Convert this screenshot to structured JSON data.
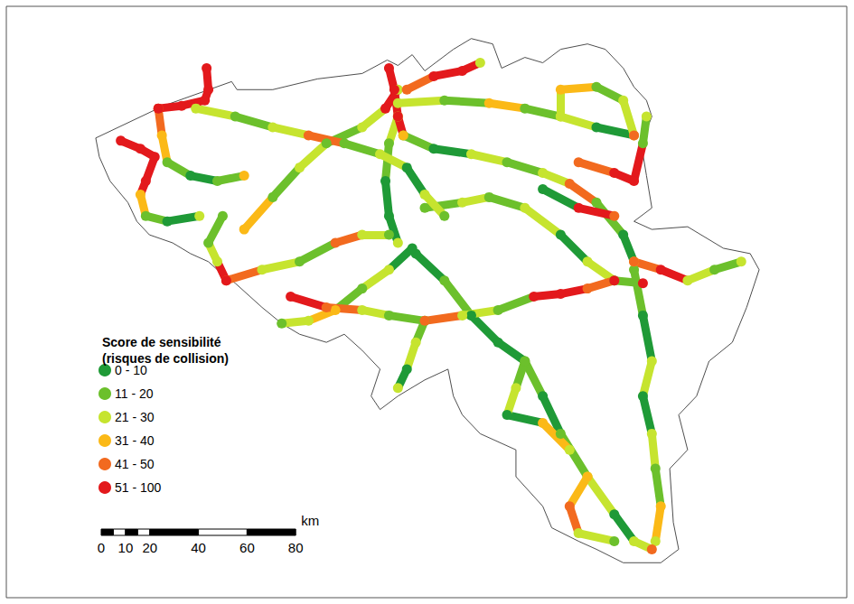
{
  "chart_data": {
    "type": "map",
    "legend_title": "Score de sensibilité\n(risques de collision)",
    "legend": "left",
    "tick_labels": false,
    "xlim": [
      2.04,
      6.74
    ],
    "ylim": [
      49.41,
      51.61
    ],
    "classes": [
      {
        "label": "0 - 10",
        "min": 0,
        "max": 10,
        "color": "#1f9a37"
      },
      {
        "label": "11 - 20",
        "min": 11,
        "max": 20,
        "color": "#6cc02c"
      },
      {
        "label": "21 - 30",
        "min": 21,
        "max": 30,
        "color": "#c6e42f"
      },
      {
        "label": "31 - 40",
        "min": 31,
        "max": 40,
        "color": "#fbb917"
      },
      {
        "label": "41 - 50",
        "min": 41,
        "max": 50,
        "color": "#f26a1f"
      },
      {
        "label": "51 - 100",
        "min": 51,
        "max": 100,
        "color": "#e3191c"
      }
    ],
    "scale_bar": {
      "unit": "km",
      "ticks": [
        0,
        10,
        20,
        40,
        60,
        80
      ],
      "segments": [
        0,
        5,
        10,
        15,
        20,
        40,
        60,
        80
      ]
    },
    "boundary": [
      [
        2.54,
        51.12
      ],
      [
        2.92,
        51.24
      ],
      [
        3.3,
        51.33
      ],
      [
        3.33,
        51.3
      ],
      [
        3.53,
        51.3
      ],
      [
        3.78,
        51.34
      ],
      [
        4.03,
        51.36
      ],
      [
        4.17,
        51.41
      ],
      [
        4.23,
        51.39
      ],
      [
        4.31,
        51.43
      ],
      [
        4.38,
        51.37
      ],
      [
        4.54,
        51.45
      ],
      [
        4.64,
        51.49
      ],
      [
        4.76,
        51.47
      ],
      [
        4.81,
        51.38
      ],
      [
        4.94,
        51.42
      ],
      [
        5.04,
        51.4
      ],
      [
        5.14,
        51.45
      ],
      [
        5.29,
        51.47
      ],
      [
        5.39,
        51.45
      ],
      [
        5.49,
        51.38
      ],
      [
        5.55,
        51.31
      ],
      [
        5.62,
        51.26
      ],
      [
        5.65,
        51.2
      ],
      [
        5.59,
        51.1
      ],
      [
        5.62,
        50.98
      ],
      [
        5.65,
        50.86
      ],
      [
        5.55,
        50.81
      ],
      [
        5.65,
        50.78
      ],
      [
        5.85,
        50.79
      ],
      [
        6.05,
        50.71
      ],
      [
        6.2,
        50.69
      ],
      [
        6.25,
        50.63
      ],
      [
        6.18,
        50.49
      ],
      [
        6.1,
        50.36
      ],
      [
        5.97,
        50.29
      ],
      [
        5.9,
        50.16
      ],
      [
        5.8,
        50.09
      ],
      [
        5.85,
        49.96
      ],
      [
        5.75,
        49.89
      ],
      [
        5.77,
        49.69
      ],
      [
        5.8,
        49.59
      ],
      [
        5.7,
        49.54
      ],
      [
        5.49,
        49.54
      ],
      [
        5.34,
        49.59
      ],
      [
        5.24,
        49.62
      ],
      [
        5.09,
        49.67
      ],
      [
        5.04,
        49.75
      ],
      [
        4.89,
        49.86
      ],
      [
        4.89,
        49.96
      ],
      [
        4.69,
        50.02
      ],
      [
        4.59,
        50.09
      ],
      [
        4.54,
        50.16
      ],
      [
        4.51,
        50.26
      ],
      [
        4.38,
        50.22
      ],
      [
        4.23,
        50.16
      ],
      [
        4.13,
        50.11
      ],
      [
        4.08,
        50.16
      ],
      [
        4.13,
        50.26
      ],
      [
        4.03,
        50.33
      ],
      [
        3.93,
        50.39
      ],
      [
        3.83,
        50.36
      ],
      [
        3.68,
        50.39
      ],
      [
        3.58,
        50.43
      ],
      [
        3.47,
        50.49
      ],
      [
        3.32,
        50.58
      ],
      [
        3.22,
        50.63
      ],
      [
        3.17,
        50.66
      ],
      [
        3.07,
        50.69
      ],
      [
        2.97,
        50.73
      ],
      [
        2.84,
        50.76
      ],
      [
        2.77,
        50.81
      ],
      [
        2.72,
        50.88
      ],
      [
        2.62,
        50.96
      ],
      [
        2.56,
        51.05
      ]
    ],
    "roads": [
      {
        "points": [
          [
            2.68,
            51.11,
            70
          ],
          [
            2.79,
            51.08,
            70
          ],
          [
            2.87,
            51.05,
            65
          ],
          [
            2.82,
            50.96,
            70
          ],
          [
            2.79,
            50.91,
            35
          ],
          [
            2.82,
            50.83,
            15
          ],
          [
            2.94,
            50.81,
            5
          ],
          [
            3.12,
            50.83,
            25
          ]
        ]
      },
      {
        "points": [
          [
            2.89,
            51.23,
            70
          ],
          [
            3.02,
            51.24,
            70
          ],
          [
            3.15,
            51.26,
            60
          ],
          [
            3.17,
            51.3,
            70
          ],
          [
            3.16,
            51.38,
            70
          ]
        ]
      },
      {
        "points": [
          [
            2.89,
            51.23,
            45
          ],
          [
            2.91,
            51.13,
            35
          ],
          [
            2.94,
            51.03,
            15
          ],
          [
            3.07,
            50.98,
            5
          ],
          [
            3.22,
            50.96,
            15
          ],
          [
            3.37,
            50.98,
            35
          ]
        ]
      },
      {
        "points": [
          [
            3.1,
            51.23,
            25
          ],
          [
            3.32,
            51.2,
            15
          ],
          [
            3.53,
            51.16,
            25
          ],
          [
            3.73,
            51.13,
            45
          ],
          [
            3.93,
            51.1,
            15
          ],
          [
            4.13,
            51.06,
            25
          ],
          [
            4.28,
            51.01,
            5
          ],
          [
            4.38,
            50.91,
            25
          ],
          [
            4.49,
            50.83,
            15
          ]
        ]
      },
      {
        "points": [
          [
            3.37,
            50.78,
            35
          ],
          [
            3.53,
            50.9,
            15
          ],
          [
            3.68,
            51.01,
            25
          ],
          [
            3.83,
            51.1,
            15
          ],
          [
            4.03,
            51.16,
            25
          ],
          [
            4.16,
            51.23,
            70
          ],
          [
            4.23,
            51.3,
            25
          ]
        ]
      },
      {
        "points": [
          [
            4.18,
            51.38,
            70
          ],
          [
            4.21,
            51.3,
            70
          ],
          [
            4.23,
            51.2,
            60
          ],
          [
            4.26,
            51.13,
            35
          ]
        ]
      },
      {
        "points": [
          [
            4.26,
            51.13,
            15
          ],
          [
            4.43,
            51.08,
            5
          ],
          [
            4.64,
            51.06,
            25
          ],
          [
            4.84,
            51.03,
            15
          ],
          [
            5.04,
            50.99,
            25
          ],
          [
            5.19,
            50.95,
            45
          ],
          [
            5.34,
            50.88,
            15
          ],
          [
            5.49,
            50.76,
            5
          ],
          [
            5.55,
            50.66,
            35
          ]
        ]
      },
      {
        "points": [
          [
            4.23,
            51.25,
            25
          ],
          [
            4.49,
            51.26,
            15
          ],
          [
            4.74,
            51.25,
            35
          ],
          [
            4.94,
            51.23,
            15
          ],
          [
            5.14,
            51.2,
            25
          ],
          [
            5.34,
            51.16,
            5
          ],
          [
            5.55,
            51.13,
            25
          ]
        ]
      },
      {
        "points": [
          [
            4.28,
            51.3,
            45
          ],
          [
            4.43,
            51.35,
            70
          ],
          [
            4.59,
            51.37,
            70
          ],
          [
            4.69,
            51.4,
            25
          ]
        ]
      },
      {
        "points": [
          [
            4.23,
            51.2,
            25
          ],
          [
            4.18,
            51.1,
            15
          ],
          [
            4.16,
            50.96,
            5
          ],
          [
            4.18,
            50.83,
            5
          ],
          [
            4.23,
            50.73,
            25
          ]
        ]
      },
      {
        "points": [
          [
            4.38,
            50.86,
            15
          ],
          [
            4.59,
            50.88,
            25
          ],
          [
            4.74,
            50.9,
            15
          ],
          [
            4.94,
            50.86,
            25
          ],
          [
            5.14,
            50.76,
            5
          ],
          [
            5.29,
            50.66,
            25
          ],
          [
            5.44,
            50.59,
            15
          ],
          [
            5.6,
            50.58,
            70
          ]
        ]
      },
      {
        "points": [
          [
            4.33,
            50.69,
            5
          ],
          [
            4.49,
            50.59,
            15
          ],
          [
            4.64,
            50.46,
            5
          ],
          [
            4.79,
            50.36,
            5
          ],
          [
            4.94,
            50.29,
            15
          ],
          [
            5.04,
            50.16,
            5
          ],
          [
            5.14,
            50.02,
            15
          ],
          [
            5.29,
            49.86,
            25
          ],
          [
            5.44,
            49.72,
            5
          ],
          [
            5.55,
            49.62,
            25
          ],
          [
            5.65,
            49.59,
            45
          ]
        ]
      },
      {
        "points": [
          [
            3.63,
            50.53,
            70
          ],
          [
            3.83,
            50.49,
            45
          ],
          [
            4.03,
            50.48,
            25
          ],
          [
            4.18,
            50.46,
            15
          ],
          [
            4.38,
            50.44,
            45
          ],
          [
            4.59,
            50.46,
            25
          ],
          [
            4.79,
            50.48,
            15
          ],
          [
            4.99,
            50.53,
            70
          ],
          [
            5.14,
            50.54,
            70
          ],
          [
            5.29,
            50.56,
            45
          ],
          [
            5.44,
            50.59,
            70
          ]
        ]
      },
      {
        "points": [
          [
            4.31,
            50.71,
            5
          ],
          [
            4.18,
            50.63,
            25
          ],
          [
            4.03,
            50.56,
            15
          ],
          [
            3.88,
            50.48,
            35
          ],
          [
            3.73,
            50.44,
            25
          ],
          [
            3.58,
            50.43,
            15
          ]
        ]
      },
      {
        "points": [
          [
            3.27,
            50.59,
            45
          ],
          [
            3.47,
            50.63,
            25
          ],
          [
            3.68,
            50.66,
            15
          ],
          [
            3.88,
            50.73,
            45
          ],
          [
            4.03,
            50.76,
            25
          ],
          [
            4.18,
            50.76,
            15
          ]
        ]
      },
      {
        "points": [
          [
            3.27,
            50.59,
            70
          ],
          [
            3.22,
            50.66,
            25
          ],
          [
            3.17,
            50.73,
            15
          ],
          [
            3.25,
            50.83,
            15
          ]
        ]
      },
      {
        "points": [
          [
            5.55,
            50.63,
            15
          ],
          [
            5.6,
            50.46,
            5
          ],
          [
            5.65,
            50.29,
            25
          ],
          [
            5.6,
            50.16,
            5
          ],
          [
            5.65,
            50.02,
            25
          ],
          [
            5.67,
            49.89,
            15
          ],
          [
            5.7,
            49.75,
            35
          ],
          [
            5.67,
            49.62,
            25
          ]
        ]
      },
      {
        "points": [
          [
            5.55,
            50.66,
            45
          ],
          [
            5.7,
            50.63,
            70
          ],
          [
            5.85,
            50.59,
            25
          ],
          [
            6.0,
            50.63,
            15
          ],
          [
            6.15,
            50.66,
            25
          ]
        ]
      },
      {
        "points": [
          [
            4.94,
            50.29,
            15
          ],
          [
            4.89,
            50.19,
            25
          ],
          [
            4.84,
            50.09,
            5
          ],
          [
            5.04,
            50.06,
            35
          ],
          [
            5.19,
            49.96,
            25
          ]
        ]
      },
      {
        "points": [
          [
            4.38,
            50.44,
            15
          ],
          [
            4.33,
            50.36,
            25
          ],
          [
            4.28,
            50.26,
            5
          ],
          [
            4.23,
            50.19,
            25
          ]
        ]
      },
      {
        "points": [
          [
            5.24,
            51.03,
            45
          ],
          [
            5.44,
            50.99,
            70
          ],
          [
            5.55,
            50.96,
            70
          ],
          [
            5.6,
            51.1,
            15
          ],
          [
            5.62,
            51.2,
            25
          ]
        ]
      },
      {
        "points": [
          [
            5.29,
            49.86,
            35
          ],
          [
            5.19,
            49.75,
            45
          ],
          [
            5.24,
            49.65,
            25
          ],
          [
            5.44,
            49.62,
            15
          ]
        ]
      },
      {
        "points": [
          [
            5.04,
            50.93,
            5
          ],
          [
            5.24,
            50.86,
            70
          ],
          [
            5.44,
            50.83,
            45
          ]
        ]
      },
      {
        "points": [
          [
            5.14,
            51.2,
            25
          ],
          [
            5.14,
            51.3,
            35
          ],
          [
            5.34,
            51.31,
            15
          ],
          [
            5.49,
            51.26,
            25
          ],
          [
            5.55,
            51.13,
            45
          ]
        ]
      }
    ]
  }
}
